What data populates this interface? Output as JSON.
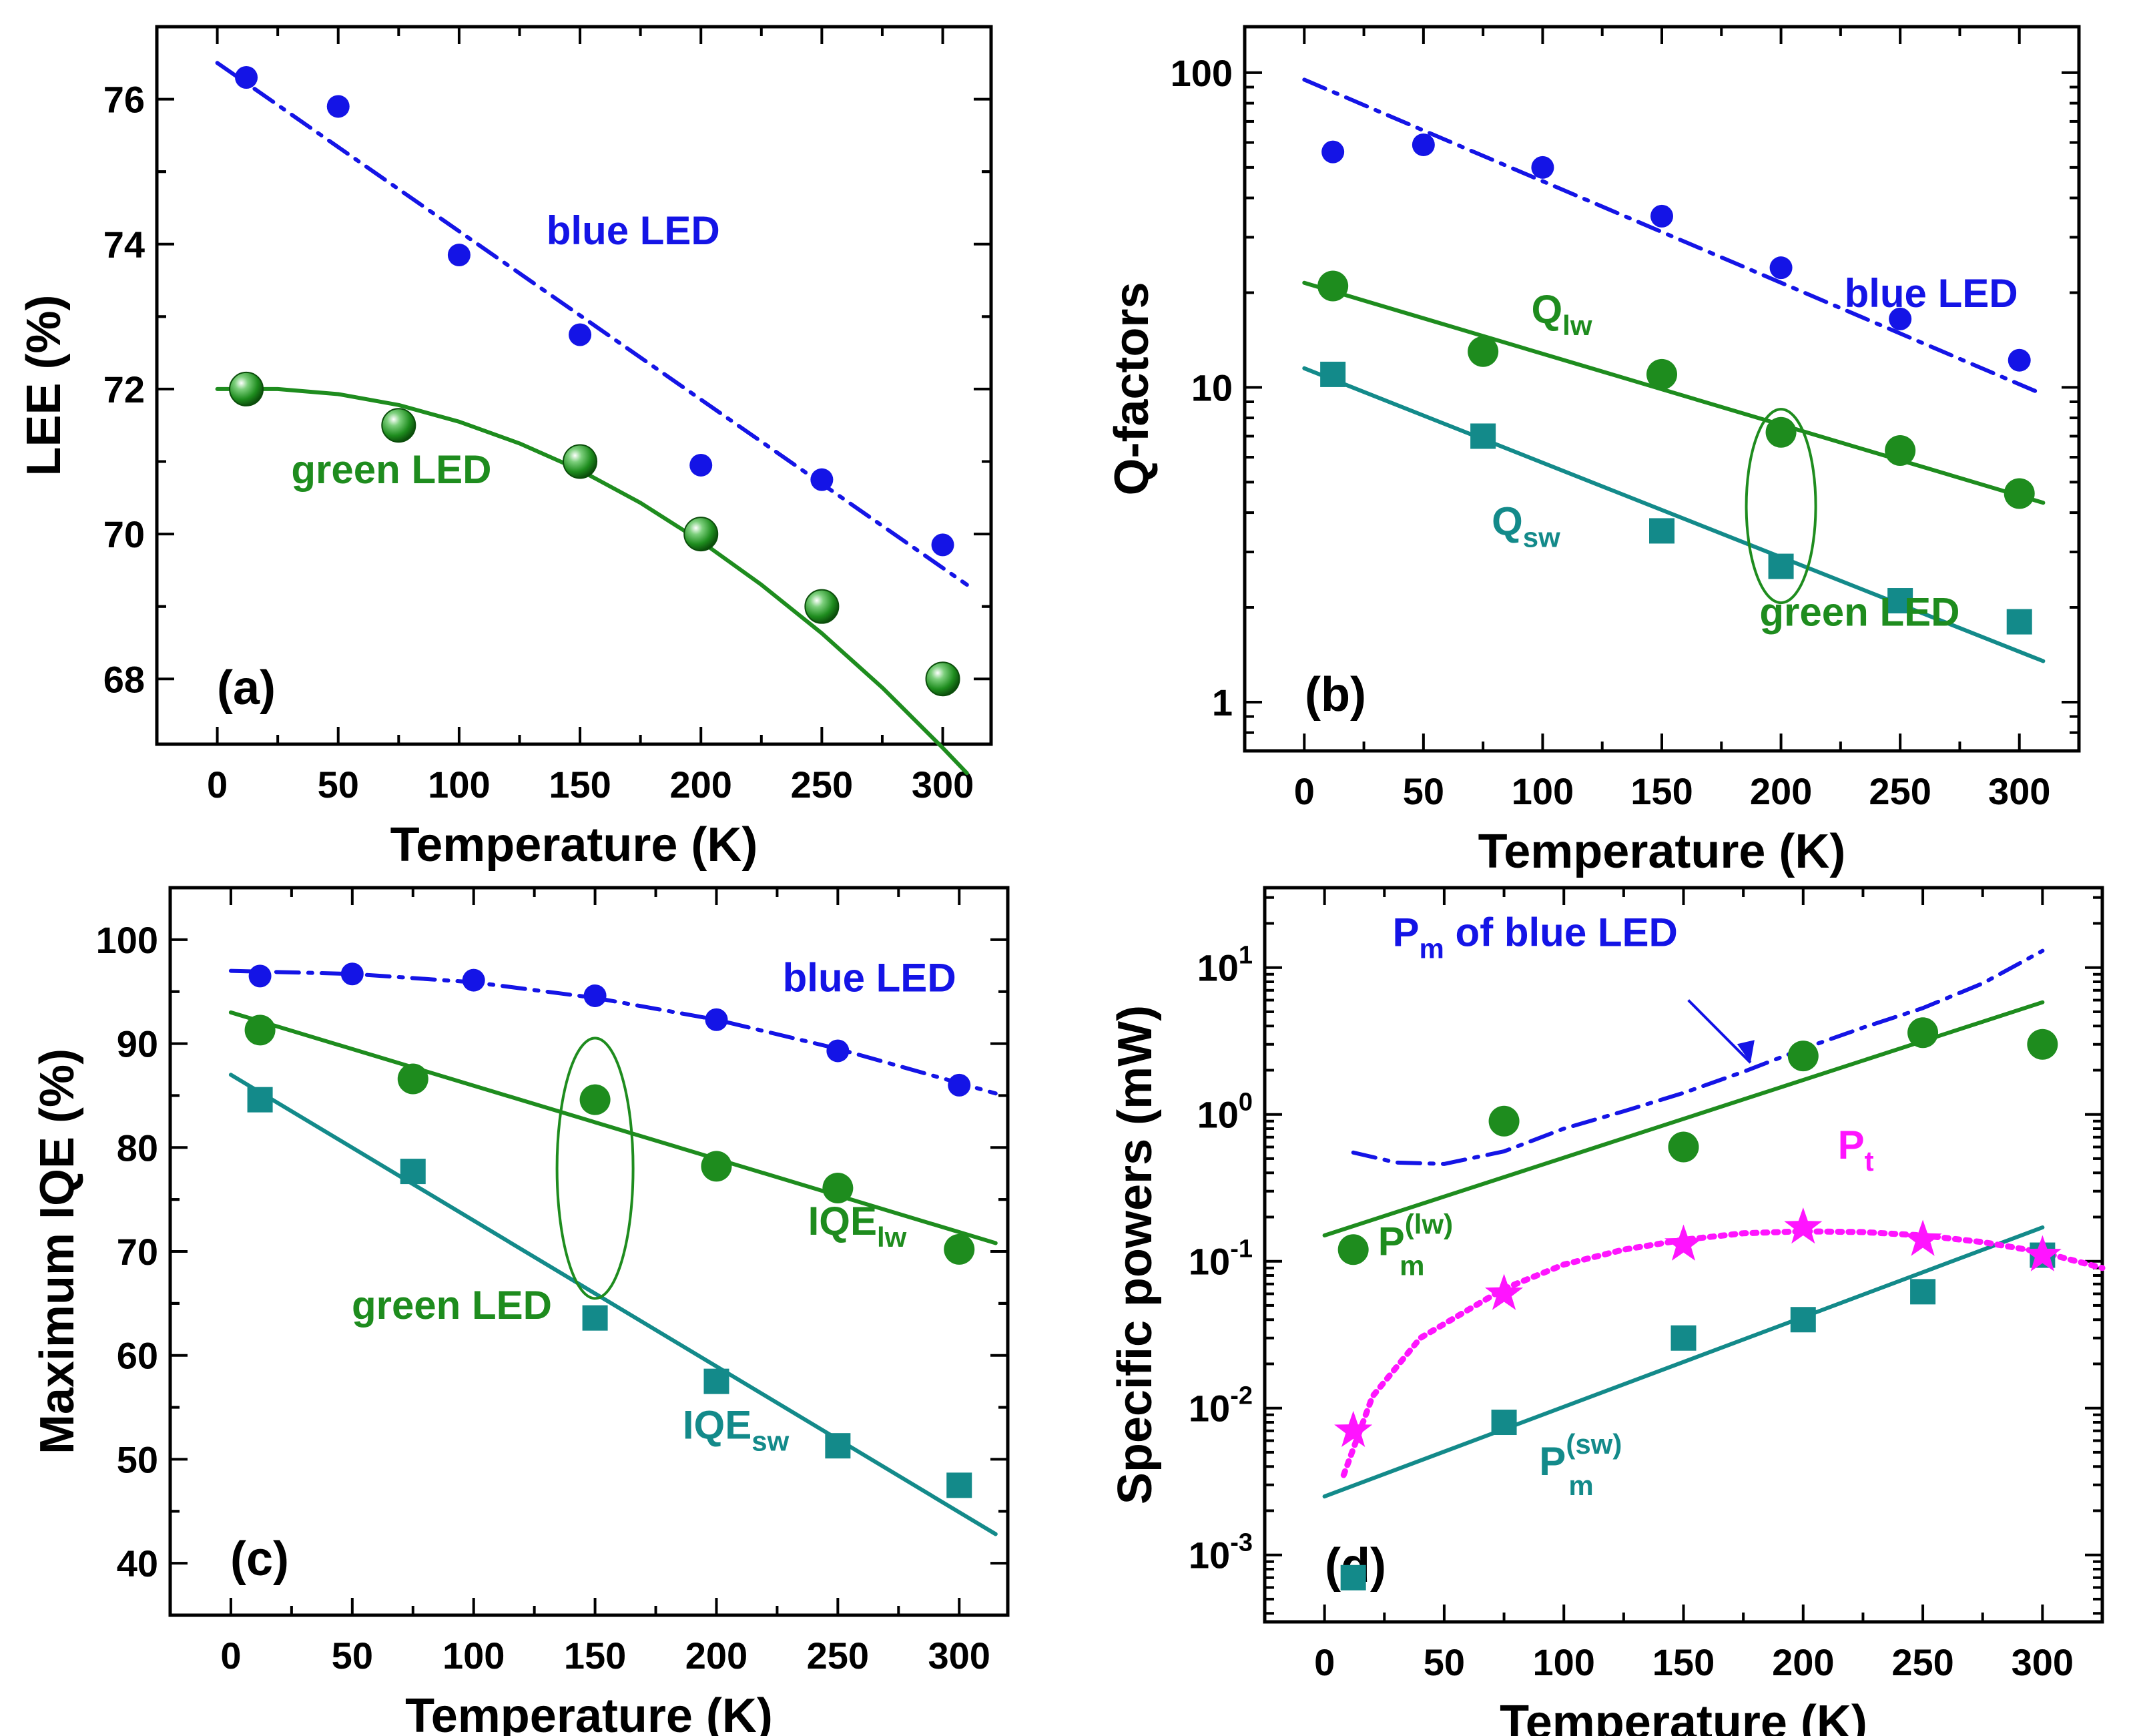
{
  "colors": {
    "blue": "#1414e6",
    "green": "#1e8c1e",
    "teal": "#138a8a",
    "magenta": "#ff14ff",
    "axis": "#000000"
  },
  "chart_data": [
    {
      "panel": "a",
      "type": "scatter",
      "panel_label": "(a)",
      "xlabel": "Temperature (K)",
      "ylabel": "LEE (%)",
      "xscale": "linear",
      "yscale": "linear",
      "xlim": [
        -25,
        320
      ],
      "ylim": [
        67.1,
        77.0
      ],
      "xticks": [
        0,
        50,
        100,
        150,
        200,
        250,
        300
      ],
      "yticks": [
        68,
        70,
        72,
        74,
        76
      ],
      "xtick_labels": [
        "0",
        "50",
        "100",
        "150",
        "200",
        "250",
        "300"
      ],
      "ytick_labels": [
        "68",
        "70",
        "72",
        "74",
        "76"
      ],
      "series": [
        {
          "name": "blue LED",
          "color": "blue",
          "marker": "circle",
          "x": [
            12,
            50,
            100,
            150,
            200,
            250,
            300
          ],
          "y": [
            76.3,
            75.9,
            73.85,
            72.75,
            70.95,
            70.75,
            69.85
          ]
        },
        {
          "name": "green LED",
          "color": "green",
          "marker": "sphere",
          "x": [
            12,
            75,
            150,
            200,
            250,
            300
          ],
          "y": [
            72.0,
            71.5,
            71.0,
            70.0,
            69.0,
            68.0
          ]
        }
      ],
      "fits": [
        {
          "color": "blue",
          "style": "dashdot",
          "x": [
            0,
            310
          ],
          "y": [
            76.5,
            69.3
          ]
        },
        {
          "color": "green",
          "style": "solid",
          "x": [
            0,
            25,
            50,
            75,
            100,
            125,
            150,
            175,
            200,
            225,
            250,
            275,
            300,
            310
          ],
          "y": [
            72.0,
            72.0,
            71.93,
            71.78,
            71.55,
            71.25,
            70.88,
            70.43,
            69.9,
            69.3,
            68.63,
            67.88,
            67.05,
            66.7
          ]
        }
      ],
      "annotations": [
        {
          "text": "blue LED",
          "color": "blue",
          "x": 172,
          "y": 74.0
        },
        {
          "text": "green LED",
          "color": "green",
          "x": 72,
          "y": 70.7
        }
      ]
    },
    {
      "panel": "b",
      "type": "scatter",
      "panel_label": "(b)",
      "xlabel": "Temperature (K)",
      "ylabel": "Q-factors",
      "xscale": "linear",
      "yscale": "log",
      "xlim": [
        -25,
        325
      ],
      "ylim": [
        0.7,
        140
      ],
      "xticks": [
        0,
        50,
        100,
        150,
        200,
        250,
        300
      ],
      "yticks": [
        1,
        10,
        100
      ],
      "xtick_labels": [
        "0",
        "50",
        "100",
        "150",
        "200",
        "250",
        "300"
      ],
      "ytick_labels": [
        "1",
        "10",
        "100"
      ],
      "series": [
        {
          "name": "blue LED",
          "color": "blue",
          "marker": "circle",
          "x": [
            12,
            50,
            100,
            150,
            200,
            250,
            300
          ],
          "y": [
            56,
            59,
            50,
            35,
            24,
            16.5,
            12.2
          ]
        },
        {
          "name": "Q_lw",
          "color": "green",
          "marker": "circle",
          "x": [
            12,
            75,
            150,
            200,
            250,
            300
          ],
          "y": [
            21,
            13,
            11,
            7.2,
            6.3,
            4.6
          ]
        },
        {
          "name": "Q_sw",
          "color": "teal",
          "marker": "square",
          "x": [
            12,
            75,
            150,
            200,
            250,
            300
          ],
          "y": [
            11,
            7,
            3.5,
            2.7,
            2.1,
            1.8
          ]
        }
      ],
      "fits": [
        {
          "color": "blue",
          "style": "dashdot",
          "x": [
            0,
            310
          ],
          "y": [
            95,
            9.5
          ]
        },
        {
          "color": "green",
          "style": "solid",
          "x": [
            0,
            310
          ],
          "y": [
            21.5,
            4.3
          ]
        },
        {
          "color": "teal",
          "style": "solid",
          "x": [
            0,
            310
          ],
          "y": [
            11.5,
            1.35
          ]
        }
      ],
      "annotations": [
        {
          "text": "blue LED",
          "color": "blue",
          "x": 263,
          "y": 18
        },
        {
          "text": "Q",
          "sub": "lw",
          "color": "green",
          "x": 108,
          "y": 16
        },
        {
          "text": "Q",
          "sub": "sw",
          "color": "teal",
          "x": 93,
          "y": 3.4
        },
        {
          "text": "green LED",
          "color": "green",
          "x": 233,
          "y": 1.75
        }
      ]
    },
    {
      "panel": "c",
      "type": "scatter",
      "panel_label": "(c)",
      "xlabel": "Temperature (K)",
      "ylabel": "Maximum IQE (%)",
      "xscale": "linear",
      "yscale": "linear",
      "xlim": [
        -25,
        320
      ],
      "ylim": [
        35,
        105
      ],
      "xticks": [
        0,
        50,
        100,
        150,
        200,
        250,
        300
      ],
      "yticks": [
        40,
        50,
        60,
        70,
        80,
        90,
        100
      ],
      "xtick_labels": [
        "0",
        "50",
        "100",
        "150",
        "200",
        "250",
        "300"
      ],
      "ytick_labels": [
        "40",
        "50",
        "60",
        "70",
        "80",
        "90",
        "100"
      ],
      "series": [
        {
          "name": "blue LED",
          "color": "blue",
          "marker": "circle",
          "x": [
            12,
            50,
            100,
            150,
            200,
            250,
            300
          ],
          "y": [
            96.5,
            96.7,
            96.1,
            94.6,
            92.3,
            89.3,
            86.0
          ]
        },
        {
          "name": "IQE_lw",
          "color": "green",
          "marker": "circle",
          "x": [
            12,
            75,
            150,
            200,
            250,
            300
          ],
          "y": [
            91.3,
            86.6,
            84.6,
            78.2,
            76.1,
            70.2
          ]
        },
        {
          "name": "IQE_sw",
          "color": "teal",
          "marker": "square",
          "x": [
            12,
            75,
            150,
            200,
            250,
            300
          ],
          "y": [
            84.6,
            77.7,
            63.6,
            57.5,
            51.3,
            47.5
          ]
        }
      ],
      "fits": [
        {
          "color": "blue",
          "style": "dashdot",
          "x": [
            0,
            50,
            100,
            150,
            200,
            250,
            300,
            315
          ],
          "y": [
            97.0,
            96.7,
            95.9,
            94.4,
            92.3,
            89.5,
            86.2,
            85.2
          ]
        },
        {
          "color": "green",
          "style": "solid",
          "x": [
            0,
            315
          ],
          "y": [
            93.0,
            70.8
          ]
        },
        {
          "color": "teal",
          "style": "solid",
          "x": [
            0,
            315
          ],
          "y": [
            87.0,
            42.8
          ]
        }
      ],
      "annotations": [
        {
          "text": "blue LED",
          "color": "blue",
          "x": 263,
          "y": 95.0
        },
        {
          "text": "green LED",
          "color": "green",
          "x": 91,
          "y": 63.5
        },
        {
          "text": "IQE",
          "sub": "lw",
          "color": "green",
          "x": 258,
          "y": 71.6
        },
        {
          "text": "IQE",
          "sub": "sw",
          "color": "teal",
          "x": 208,
          "y": 52.0
        }
      ]
    },
    {
      "panel": "d",
      "type": "scatter",
      "panel_label": "(d)",
      "xlabel": "Temperature (K)",
      "ylabel": "Specific powers (mW)",
      "xscale": "linear",
      "yscale": "log",
      "xlim": [
        -25,
        325
      ],
      "ylim": [
        0.00035,
        35
      ],
      "xticks": [
        0,
        50,
        100,
        150,
        200,
        250,
        300
      ],
      "yticks": [
        0.001,
        0.01,
        0.1,
        1,
        10
      ],
      "xtick_labels": [
        "0",
        "50",
        "100",
        "150",
        "200",
        "250",
        "300"
      ],
      "ytick_labels": [
        "10",
        "10",
        "10",
        "10",
        "10"
      ],
      "ytick_exponents": [
        "-3",
        "-2",
        "-1",
        "0",
        "1"
      ],
      "series": [
        {
          "name": "P_m^(lw)",
          "color": "green",
          "marker": "circle",
          "x": [
            12,
            75,
            150,
            200,
            250,
            300
          ],
          "y": [
            0.12,
            0.9,
            0.6,
            2.5,
            3.6,
            3.0
          ]
        },
        {
          "name": "P_m^(sw)",
          "color": "teal",
          "marker": "square",
          "x": [
            12,
            75,
            150,
            200,
            250,
            300
          ],
          "y": [
            0.0007,
            0.008,
            0.03,
            0.04,
            0.062,
            0.11
          ]
        },
        {
          "name": "P_t",
          "color": "magenta",
          "marker": "star",
          "x": [
            12,
            75,
            150,
            200,
            250,
            300
          ],
          "y": [
            0.007,
            0.06,
            0.13,
            0.17,
            0.14,
            0.11
          ]
        }
      ],
      "fits": [
        {
          "color": "blue",
          "style": "dashdot",
          "x": [
            12,
            30,
            50,
            75,
            100,
            125,
            150,
            175,
            200,
            225,
            250,
            275,
            300
          ],
          "y": [
            0.55,
            0.47,
            0.46,
            0.56,
            0.8,
            1.05,
            1.4,
            1.95,
            2.8,
            3.9,
            5.3,
            7.8,
            13.0
          ]
        },
        {
          "color": "green",
          "style": "solid",
          "x": [
            0,
            300
          ],
          "y": [
            0.15,
            5.8
          ]
        },
        {
          "color": "teal",
          "style": "solid",
          "x": [
            0,
            300
          ],
          "y": [
            0.0025,
            0.17
          ]
        },
        {
          "color": "magenta",
          "style": "dotted",
          "x": [
            8,
            20,
            40,
            75,
            100,
            125,
            150,
            175,
            200,
            225,
            250,
            275,
            300,
            325
          ],
          "y": [
            0.0035,
            0.012,
            0.03,
            0.065,
            0.095,
            0.12,
            0.14,
            0.155,
            0.16,
            0.158,
            0.15,
            0.135,
            0.115,
            0.09
          ]
        }
      ],
      "annotations": [
        {
          "text": "P",
          "sub": "m",
          "tail": " of blue LED",
          "color": "blue",
          "x": 88,
          "y": 14
        },
        {
          "text": "P",
          "sub": "m",
          "sup": "(lw)",
          "color": "green",
          "x": 38,
          "y": 0.11
        },
        {
          "text": "P",
          "sub": "t",
          "color": "magenta",
          "x": 222,
          "y": 0.5
        },
        {
          "text": "P",
          "sub": "m",
          "sup": "(sw)",
          "color": "teal",
          "x": 107,
          "y": 0.0035
        }
      ]
    }
  ]
}
